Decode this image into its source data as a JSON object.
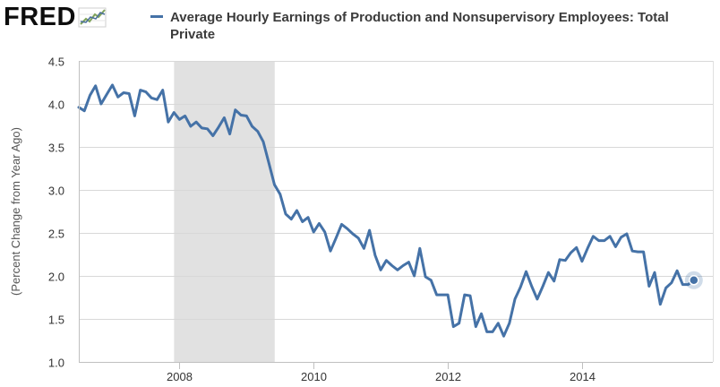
{
  "header": {
    "logo_text": "FRED",
    "logo_icon": "fred-chart-logo-icon"
  },
  "legend": {
    "label": "Average Hourly Earnings of Production and Nonsupervisory Employees: Total Private",
    "color": "#4572a7"
  },
  "chart_data": {
    "type": "line",
    "title": "",
    "xlabel": "",
    "ylabel": "(Percent Change from Year Ago)",
    "xlim": [
      2006.5,
      2015.95
    ],
    "ylim": [
      1.0,
      4.5
    ],
    "grid": "horizontal",
    "x_ticks": [
      2008,
      2010,
      2012,
      2014
    ],
    "x_tick_labels": [
      "2008",
      "2010",
      "2012",
      "2014"
    ],
    "y_ticks": [
      1.0,
      1.5,
      2.0,
      2.5,
      3.0,
      3.5,
      4.0,
      4.5
    ],
    "y_tick_labels": [
      "1.0",
      "1.5",
      "2.0",
      "2.5",
      "3.0",
      "3.5",
      "4.0",
      "4.5"
    ],
    "recession_shading": [
      {
        "start": 2007.92,
        "end": 2009.42,
        "color": "#e1e1e1"
      }
    ],
    "series": [
      {
        "name": "Average Hourly Earnings of Production and Nonsupervisory Employees: Total Private",
        "color": "#4572a7",
        "x": [
          2006.5,
          2006.583,
          2006.667,
          2006.75,
          2006.833,
          2006.917,
          2007.0,
          2007.083,
          2007.167,
          2007.25,
          2007.333,
          2007.417,
          2007.5,
          2007.583,
          2007.667,
          2007.75,
          2007.833,
          2007.917,
          2008.0,
          2008.083,
          2008.167,
          2008.25,
          2008.333,
          2008.417,
          2008.5,
          2008.583,
          2008.667,
          2008.75,
          2008.833,
          2008.917,
          2009.0,
          2009.083,
          2009.167,
          2009.25,
          2009.333,
          2009.417,
          2009.5,
          2009.583,
          2009.667,
          2009.75,
          2009.833,
          2009.917,
          2010.0,
          2010.083,
          2010.167,
          2010.25,
          2010.333,
          2010.417,
          2010.5,
          2010.583,
          2010.667,
          2010.75,
          2010.833,
          2010.917,
          2011.0,
          2011.083,
          2011.167,
          2011.25,
          2011.333,
          2011.417,
          2011.5,
          2011.583,
          2011.667,
          2011.75,
          2011.833,
          2011.917,
          2012.0,
          2012.083,
          2012.167,
          2012.25,
          2012.333,
          2012.417,
          2012.5,
          2012.583,
          2012.667,
          2012.75,
          2012.833,
          2012.917,
          2013.0,
          2013.083,
          2013.167,
          2013.25,
          2013.333,
          2013.417,
          2013.5,
          2013.583,
          2013.667,
          2013.75,
          2013.833,
          2013.917,
          2014.0,
          2014.083,
          2014.167,
          2014.25,
          2014.333,
          2014.417,
          2014.5,
          2014.583,
          2014.667,
          2014.75,
          2014.833,
          2014.917,
          2015.0,
          2015.083,
          2015.167,
          2015.25,
          2015.333,
          2015.417,
          2015.5,
          2015.583,
          2015.667
        ],
        "values": [
          3.96,
          3.92,
          4.1,
          4.21,
          4.0,
          4.11,
          4.22,
          4.08,
          4.13,
          4.12,
          3.86,
          4.16,
          4.14,
          4.07,
          4.05,
          4.16,
          3.79,
          3.9,
          3.82,
          3.86,
          3.74,
          3.79,
          3.72,
          3.71,
          3.63,
          3.73,
          3.84,
          3.65,
          3.93,
          3.87,
          3.86,
          3.74,
          3.68,
          3.56,
          3.31,
          3.06,
          2.95,
          2.72,
          2.66,
          2.76,
          2.63,
          2.68,
          2.51,
          2.61,
          2.51,
          2.29,
          2.44,
          2.6,
          2.55,
          2.49,
          2.44,
          2.32,
          2.53,
          2.24,
          2.07,
          2.18,
          2.12,
          2.07,
          2.12,
          2.16,
          2.0,
          2.32,
          1.99,
          1.95,
          1.78,
          1.78,
          1.78,
          1.41,
          1.45,
          1.78,
          1.77,
          1.41,
          1.56,
          1.35,
          1.35,
          1.45,
          1.3,
          1.45,
          1.73,
          1.87,
          2.05,
          1.88,
          1.73,
          1.88,
          2.04,
          1.94,
          2.19,
          2.18,
          2.27,
          2.33,
          2.17,
          2.32,
          2.46,
          2.41,
          2.41,
          2.46,
          2.34,
          2.45,
          2.49,
          2.29,
          2.28,
          2.28,
          1.88,
          2.04,
          1.67,
          1.86,
          1.92,
          2.06,
          1.9,
          1.9,
          1.95
        ]
      }
    ]
  }
}
